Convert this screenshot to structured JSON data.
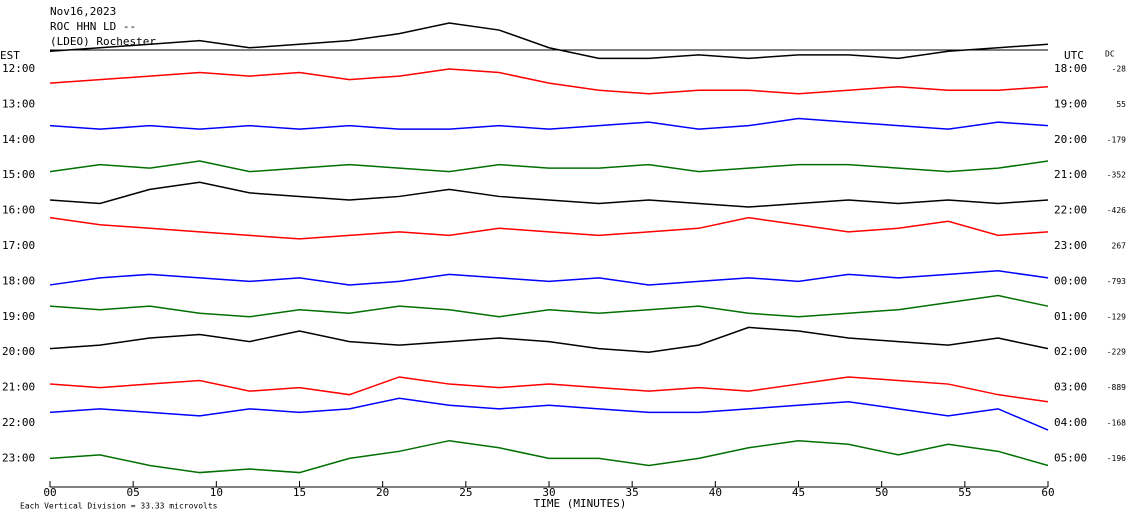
{
  "chart_data": {
    "type": "helicorder",
    "header": [
      "Nov16,2023",
      "ROC HHN LD --",
      "(LDEO) Rochester"
    ],
    "left_axis_title": "EST",
    "right_axis_title": "UTC",
    "dc_title": "DC",
    "x_label": "TIME (MINUTES)",
    "note": "Each Vertical Division = 33.33 microvolts",
    "xlim": [
      0,
      60
    ],
    "xticks": [
      {
        "value": 0,
        "label": "00"
      },
      {
        "value": 5,
        "label": "05"
      },
      10,
      15,
      20,
      25,
      30,
      35,
      40,
      45,
      50,
      55,
      60
    ],
    "x": [
      0,
      3,
      6,
      9,
      12,
      15,
      18,
      21,
      24,
      27,
      30,
      33,
      36,
      39,
      42,
      45,
      48,
      51,
      54,
      57,
      60
    ],
    "rows": [
      {
        "est": "12:00",
        "utc": "18:00",
        "dc": "-28",
        "color": "#000000",
        "values": [
          0.5,
          0.6,
          0.7,
          0.8,
          0.6,
          0.7,
          0.8,
          1.0,
          1.3,
          1.1,
          0.6,
          0.3,
          0.3,
          0.4,
          0.3,
          0.4,
          0.4,
          0.3,
          0.5,
          0.6,
          0.7
        ]
      },
      {
        "est": "13:00",
        "utc": "19:00",
        "dc": "55",
        "color": "#ff0000",
        "values": [
          0.6,
          0.7,
          0.8,
          0.9,
          0.8,
          0.9,
          0.7,
          0.8,
          1.0,
          0.9,
          0.6,
          0.4,
          0.3,
          0.4,
          0.4,
          0.3,
          0.4,
          0.5,
          0.4,
          0.4,
          0.5
        ]
      },
      {
        "est": "14:00",
        "utc": "20:00",
        "dc": "-179",
        "color": "#0000ff",
        "values": [
          0.4,
          0.3,
          0.4,
          0.3,
          0.4,
          0.3,
          0.4,
          0.3,
          0.3,
          0.4,
          0.3,
          0.4,
          0.5,
          0.3,
          0.4,
          0.6,
          0.5,
          0.4,
          0.3,
          0.5,
          0.4
        ]
      },
      {
        "est": "15:00",
        "utc": "21:00",
        "dc": "-352",
        "color": "#007000",
        "values": [
          0.1,
          0.3,
          0.2,
          0.4,
          0.1,
          0.2,
          0.3,
          0.2,
          0.1,
          0.3,
          0.2,
          0.2,
          0.3,
          0.1,
          0.2,
          0.3,
          0.3,
          0.2,
          0.1,
          0.2,
          0.4
        ]
      },
      {
        "est": "16:00",
        "utc": "22:00",
        "dc": "-426",
        "color": "#000000",
        "values": [
          0.3,
          0.2,
          0.6,
          0.8,
          0.5,
          0.4,
          0.3,
          0.4,
          0.6,
          0.4,
          0.3,
          0.2,
          0.3,
          0.2,
          0.1,
          0.2,
          0.3,
          0.2,
          0.3,
          0.2,
          0.3
        ]
      },
      {
        "est": "17:00",
        "utc": "23:00",
        "dc": "267",
        "color": "#ff0000",
        "values": [
          0.8,
          0.6,
          0.5,
          0.4,
          0.3,
          0.2,
          0.3,
          0.4,
          0.3,
          0.5,
          0.4,
          0.3,
          0.4,
          0.5,
          0.8,
          0.6,
          0.4,
          0.5,
          0.7,
          0.3,
          0.4
        ]
      },
      {
        "est": "18:00",
        "utc": "00:00",
        "dc": "-793",
        "color": "#0000ff",
        "values": [
          -0.1,
          0.1,
          0.2,
          0.1,
          0.0,
          0.1,
          -0.1,
          0.0,
          0.2,
          0.1,
          0.0,
          0.1,
          -0.1,
          0.0,
          0.1,
          0.0,
          0.2,
          0.1,
          0.2,
          0.3,
          0.1
        ]
      },
      {
        "est": "19:00",
        "utc": "01:00",
        "dc": "-129",
        "color": "#007000",
        "values": [
          0.3,
          0.2,
          0.3,
          0.1,
          0.0,
          0.2,
          0.1,
          0.3,
          0.2,
          0.0,
          0.2,
          0.1,
          0.2,
          0.3,
          0.1,
          0.0,
          0.1,
          0.2,
          0.4,
          0.6,
          0.3
        ]
      },
      {
        "est": "20:00",
        "utc": "02:00",
        "dc": "-229",
        "color": "#000000",
        "values": [
          0.1,
          0.2,
          0.4,
          0.5,
          0.3,
          0.6,
          0.3,
          0.2,
          0.3,
          0.4,
          0.3,
          0.1,
          0.0,
          0.2,
          0.7,
          0.6,
          0.4,
          0.3,
          0.2,
          0.4,
          0.1
        ]
      },
      {
        "est": "21:00",
        "utc": "03:00",
        "dc": "-889",
        "color": "#ff0000",
        "values": [
          0.1,
          0.0,
          0.1,
          0.2,
          -0.1,
          0.0,
          -0.2,
          0.3,
          0.1,
          0.0,
          0.1,
          0.0,
          -0.1,
          0.0,
          -0.1,
          0.1,
          0.3,
          0.2,
          0.1,
          -0.2,
          -0.4
        ]
      },
      {
        "est": "22:00",
        "utc": "04:00",
        "dc": "-168",
        "color": "#0000ff",
        "values": [
          0.3,
          0.4,
          0.3,
          0.2,
          0.4,
          0.3,
          0.4,
          0.7,
          0.5,
          0.4,
          0.5,
          0.4,
          0.3,
          0.3,
          0.4,
          0.5,
          0.6,
          0.4,
          0.2,
          0.4,
          -0.2
        ]
      },
      {
        "est": "23:00",
        "utc": "05:00",
        "dc": "-196",
        "color": "#007000",
        "values": [
          0.0,
          0.1,
          -0.2,
          -0.4,
          -0.3,
          -0.4,
          0.0,
          0.2,
          0.5,
          0.3,
          0.0,
          0.0,
          -0.2,
          0.0,
          0.3,
          0.5,
          0.4,
          0.1,
          0.4,
          0.2,
          -0.2
        ]
      }
    ]
  }
}
